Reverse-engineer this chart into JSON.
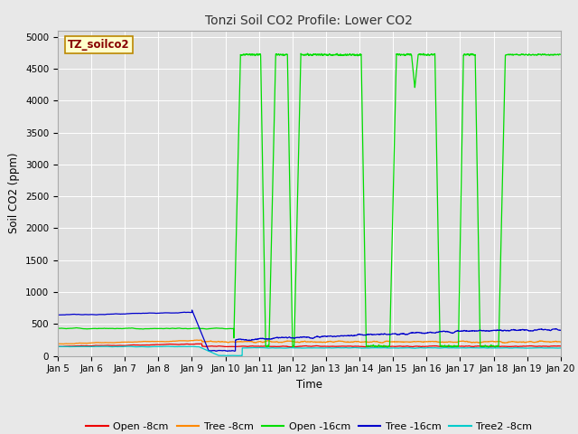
{
  "title": "Tonzi Soil CO2 Profile: Lower CO2",
  "xlabel": "Time",
  "ylabel": "Soil CO2 (ppm)",
  "ylim": [
    0,
    5100
  ],
  "yticks": [
    0,
    500,
    1000,
    1500,
    2000,
    2500,
    3000,
    3500,
    4000,
    4500,
    5000
  ],
  "fig_facecolor": "#e8e8e8",
  "plot_bg_color": "#e0e0e0",
  "legend_box_label": "TZ_soilco2",
  "legend_box_facecolor": "#ffffcc",
  "legend_box_edgecolor": "#bb8800",
  "legend_box_textcolor": "#880000",
  "series": {
    "open_8cm": {
      "label": "Open -8cm",
      "color": "#ee0000"
    },
    "tree_8cm": {
      "label": "Tree -8cm",
      "color": "#ff8800"
    },
    "open_16cm": {
      "label": "Open -16cm",
      "color": "#00dd00"
    },
    "tree_16cm": {
      "label": "Tree -16cm",
      "color": "#0000cc"
    },
    "tree2_8cm": {
      "label": "Tree2 -8cm",
      "color": "#00cccc"
    }
  },
  "n_points": 4000,
  "x_start": 5,
  "x_end": 20,
  "xtick_positions": [
    5,
    6,
    7,
    8,
    9,
    10,
    11,
    12,
    13,
    14,
    15,
    16,
    17,
    18,
    19,
    20
  ],
  "xtick_labels": [
    "Jan 5",
    "Jan 6",
    "Jan 7",
    "Jan 8",
    "Jan 9",
    "Jan 10",
    "Jan 11",
    "Jan 12",
    "Jan 13",
    "Jan 14",
    "Jan 15",
    "Jan 16",
    "Jan 17",
    "Jan 18",
    "Jan 19",
    "Jan 20"
  ]
}
